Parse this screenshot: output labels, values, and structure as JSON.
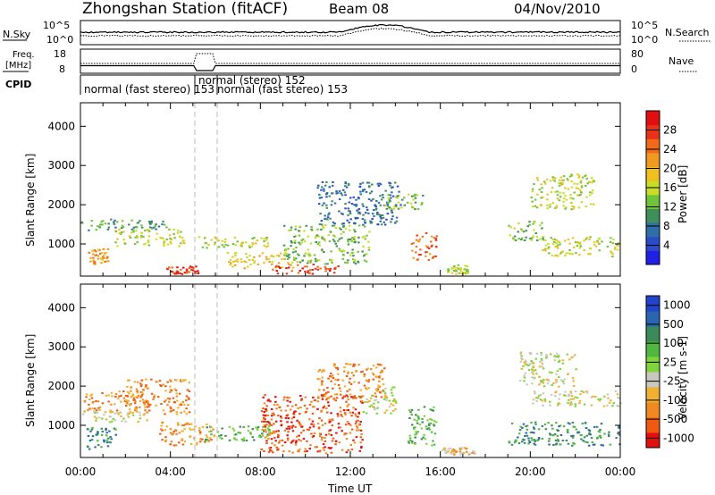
{
  "header": {
    "title": "Zhongshan Station (fitACF)",
    "beam": "Beam 08",
    "date": "04/Nov/2010"
  },
  "top_panels": {
    "nsky_label": "N.Sky",
    "nsearch_label": "N.Search",
    "freq_label_1": "Freq.",
    "freq_label_2": "[MHz]",
    "nave_label": "Nave",
    "cpid_label": "CPID",
    "noise_left_ticks": [
      "10^5",
      "10^0"
    ],
    "noise_right_ticks": [
      "10^5",
      "10^0"
    ],
    "freq_left_ticks": [
      "18",
      "8"
    ],
    "nave_right_ticks": [
      "80",
      "0"
    ],
    "cpid_segments": [
      {
        "label": "normal (fast stereo) 153",
        "start_hour": 0,
        "end_hour": 5.1
      },
      {
        "label": "normal (stereo) 152",
        "start_hour": 5.1,
        "end_hour": 6.0
      },
      {
        "label": "normal (fast stereo) 153",
        "start_hour": 6.0,
        "end_hour": 24
      }
    ]
  },
  "chart_data": [
    {
      "type": "heatmap",
      "name": "power",
      "ylabel": "Slant Range [km]",
      "yticks": [
        "1000",
        "2000",
        "3000",
        "4000"
      ],
      "ylim": [
        180,
        4600
      ],
      "xlim_hours": [
        0,
        24
      ],
      "colorbar_label": "Power [dB]",
      "colorbar_ticks": [
        "4",
        "8",
        "12",
        "16",
        "20",
        "24",
        "28"
      ],
      "colorbar_colors": [
        "#1f1fe6",
        "#2a4cc8",
        "#2f6fa8",
        "#3f8f5a",
        "#6fc43a",
        "#c8dc2a",
        "#f0c020",
        "#f09a20",
        "#f06a1a",
        "#e8321a",
        "#e01010"
      ],
      "structures": [
        {
          "t0": 0.0,
          "t1": 3.8,
          "r0": 1350,
          "r1": 1650,
          "level": 3
        },
        {
          "t0": 0.3,
          "t1": 1.2,
          "r0": 500,
          "r1": 900,
          "level": 7
        },
        {
          "t0": 1.5,
          "t1": 4.6,
          "r0": 950,
          "r1": 1400,
          "level": 5
        },
        {
          "t0": 3.8,
          "t1": 5.2,
          "r0": 250,
          "r1": 450,
          "level": 9
        },
        {
          "t0": 5.2,
          "t1": 8.5,
          "r0": 900,
          "r1": 1200,
          "level": 5
        },
        {
          "t0": 6.5,
          "t1": 9.5,
          "r0": 400,
          "r1": 800,
          "level": 6
        },
        {
          "t0": 8.5,
          "t1": 11.5,
          "r0": 250,
          "r1": 500,
          "level": 9
        },
        {
          "t0": 9.0,
          "t1": 12.8,
          "r0": 500,
          "r1": 1500,
          "level": 4
        },
        {
          "t0": 10.5,
          "t1": 14.2,
          "r0": 1500,
          "r1": 2600,
          "level": 2
        },
        {
          "t0": 13.5,
          "t1": 15.2,
          "r0": 1900,
          "r1": 2300,
          "level": 4
        },
        {
          "t0": 14.6,
          "t1": 15.8,
          "r0": 600,
          "r1": 1300,
          "level": 8
        },
        {
          "t0": 16.2,
          "t1": 17.2,
          "r0": 250,
          "r1": 500,
          "level": 5
        },
        {
          "t0": 19.0,
          "t1": 20.6,
          "r0": 1100,
          "r1": 1600,
          "level": 4
        },
        {
          "t0": 20.0,
          "t1": 22.8,
          "r0": 1900,
          "r1": 2800,
          "level": 5
        },
        {
          "t0": 20.5,
          "t1": 24.0,
          "r0": 700,
          "r1": 1200,
          "level": 5
        }
      ]
    },
    {
      "type": "heatmap",
      "name": "velocity",
      "ylabel": "Slant Range [km]",
      "yticks": [
        "1000",
        "2000",
        "3000",
        "4000"
      ],
      "ylim": [
        180,
        4600
      ],
      "xlim_hours": [
        0,
        24
      ],
      "xticks": [
        "00:00",
        "04:00",
        "08:00",
        "12:00",
        "16:00",
        "20:00",
        "00:00"
      ],
      "xlabel": "Time UT",
      "colorbar_label": "Velocity [m s-1]",
      "colorbar_ticks": [
        "1000",
        "500",
        "100",
        "25",
        "-25",
        "-100",
        "-500",
        "-1000"
      ],
      "colorbar_colors": [
        "#2244cc",
        "#2a66b0",
        "#3a8a5a",
        "#50b840",
        "#7fd43a",
        "#c8c8c0",
        "#f0b030",
        "#f08a20",
        "#f05a10",
        "#e01010"
      ],
      "structures": [
        {
          "t0": 0.0,
          "t1": 3.0,
          "r0": 1400,
          "r1": 1900,
          "level": 7
        },
        {
          "t0": 0.0,
          "t1": 3.0,
          "r0": 1100,
          "r1": 1400,
          "level": 5
        },
        {
          "t0": 0.2,
          "t1": 1.6,
          "r0": 400,
          "r1": 1000,
          "level": 2
        },
        {
          "t0": 2.0,
          "t1": 4.8,
          "r0": 1300,
          "r1": 2200,
          "level": 7
        },
        {
          "t0": 3.5,
          "t1": 6.0,
          "r0": 500,
          "r1": 1100,
          "level": 7
        },
        {
          "t0": 5.5,
          "t1": 8.5,
          "r0": 600,
          "r1": 1000,
          "level": 3
        },
        {
          "t0": 8.0,
          "t1": 12.5,
          "r0": 300,
          "r1": 1800,
          "level": 8
        },
        {
          "t0": 10.5,
          "t1": 13.5,
          "r0": 1700,
          "r1": 2600,
          "level": 7
        },
        {
          "t0": 12.5,
          "t1": 14.0,
          "r0": 1300,
          "r1": 2000,
          "level": 5
        },
        {
          "t0": 14.5,
          "t1": 15.8,
          "r0": 500,
          "r1": 1500,
          "level": 3
        },
        {
          "t0": 16.0,
          "t1": 17.5,
          "r0": 250,
          "r1": 450,
          "level": 6
        },
        {
          "t0": 19.5,
          "t1": 22.0,
          "r0": 2000,
          "r1": 2900,
          "level": 5
        },
        {
          "t0": 20.0,
          "t1": 24.0,
          "r0": 1500,
          "r1": 1900,
          "level": 5
        },
        {
          "t0": 19.0,
          "t1": 24.0,
          "r0": 500,
          "r1": 1100,
          "level": 2
        }
      ]
    }
  ]
}
